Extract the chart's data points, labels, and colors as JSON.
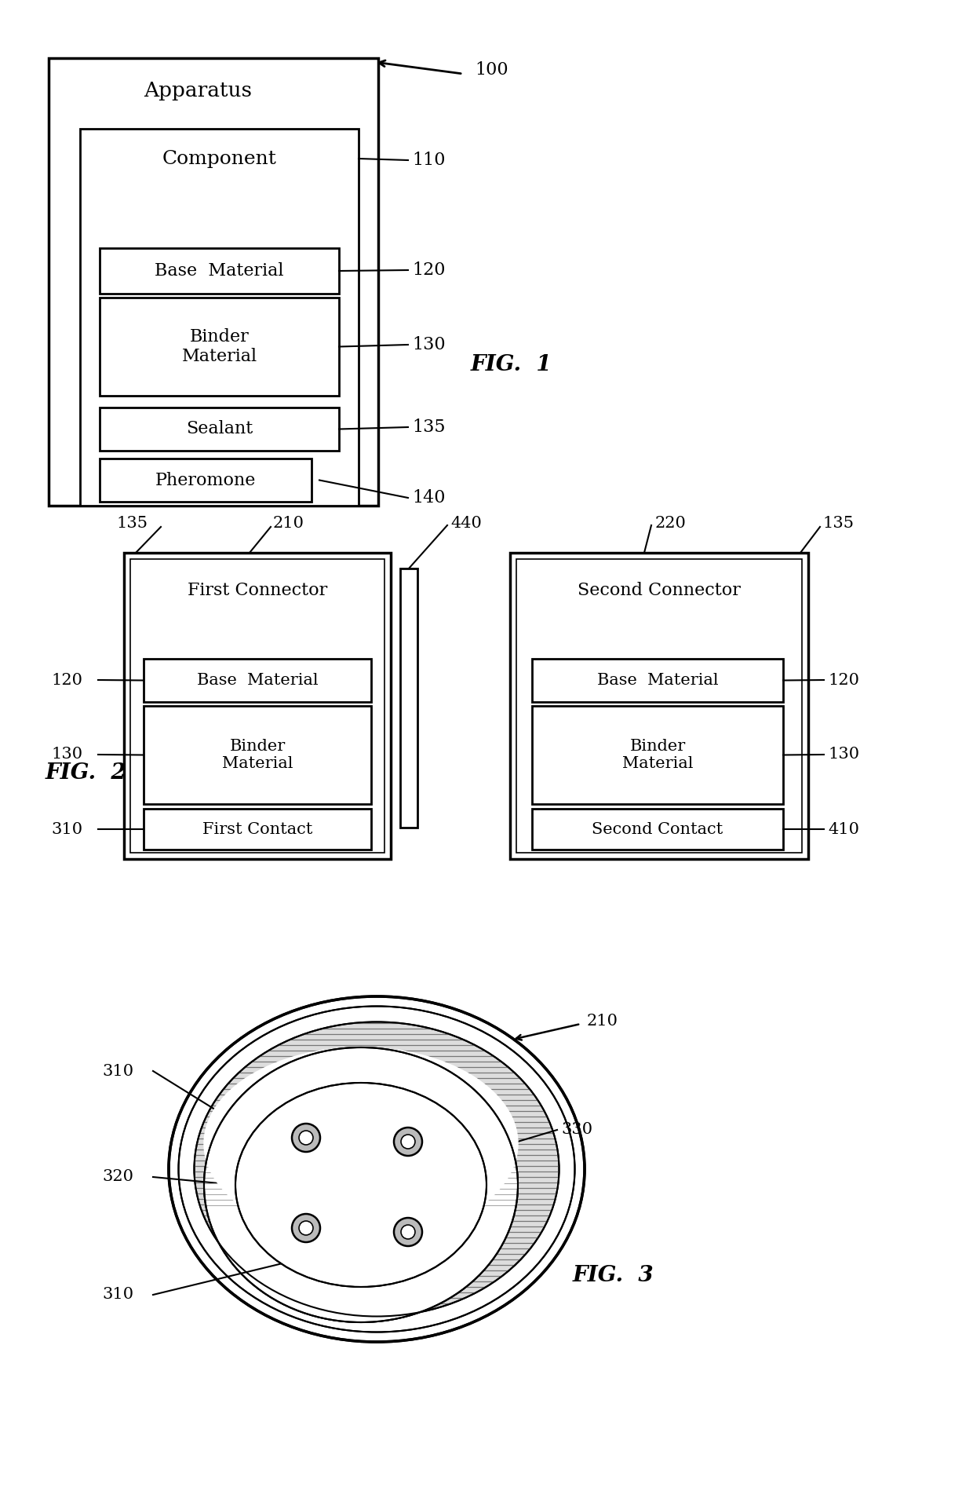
{
  "bg_color": "#ffffff",
  "fig1": {
    "apparatus_label": "Apparatus",
    "apparatus_ref": "100",
    "component_label": "Component",
    "component_ref": "110",
    "base_material_label": "Base  Material",
    "base_material_ref": "120",
    "binder_material_label": "Binder\nMaterial",
    "binder_material_ref": "130",
    "sealant_label": "Sealant",
    "sealant_ref": "135",
    "pheromone_label": "Pheromone",
    "pheromone_ref": "140"
  },
  "fig2": {
    "left_outer_label": "First Connector",
    "left_outer_ref": "210",
    "left_sealant_ref": "135",
    "right_outer_label": "Second Connector",
    "right_outer_ref": "220",
    "right_sealant_ref": "135",
    "base_material_label": "Base  Material",
    "base_material_ref": "120",
    "binder_material_label": "Binder\nMaterial",
    "binder_material_ref": "130",
    "first_contact_label": "First Contact",
    "first_contact_ref": "310",
    "second_contact_label": "Second Contact",
    "second_contact_ref": "410",
    "connector_ref": "440"
  },
  "fig3": {
    "outer_circle_ref": "210",
    "inner_ring_ref": "330",
    "contact_ref1": "310",
    "contact_ref2": "310",
    "middle_ref": "320"
  }
}
